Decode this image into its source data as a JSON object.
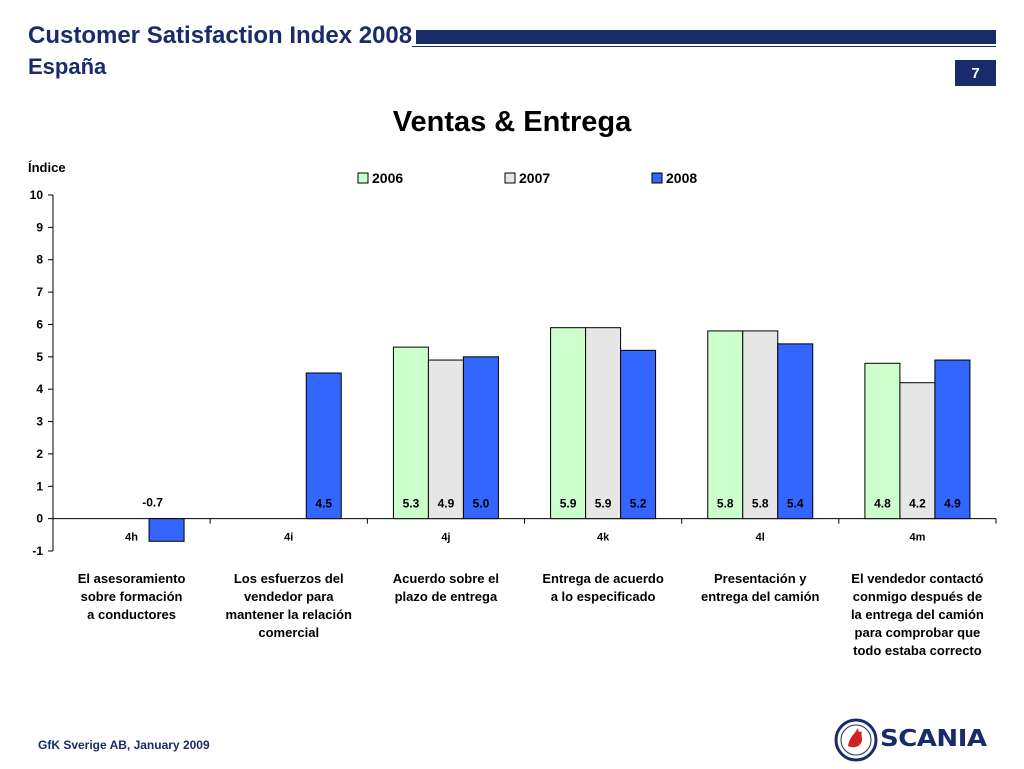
{
  "header": {
    "title": "Customer Satisfaction Index 2008",
    "subtitle": "España",
    "page_number": "7",
    "brand_color": "#1a2b6b"
  },
  "footer": {
    "note": "GfK Sverige AB, January 2009",
    "logo_text": "SCANIA"
  },
  "chart_data": {
    "type": "bar",
    "title": "Ventas & Entrega",
    "ylabel": "Índice",
    "xlabel": "",
    "ylim": [
      -1,
      10
    ],
    "yticks": [
      -1,
      0,
      1,
      2,
      3,
      4,
      5,
      6,
      7,
      8,
      9,
      10
    ],
    "grid": false,
    "legend_position": "top",
    "categories": [
      "4h",
      "4i",
      "4j",
      "4k",
      "4l",
      "4m"
    ],
    "category_descriptions": [
      "El asesoramiento\nsobre formación\na conductores",
      "Los esfuerzos del\nvendedor para\nmantener la relación\ncomercial",
      "Acuerdo sobre el\nplazo de entrega",
      "Entrega de acuerdo\na lo especificado",
      "Presentación y\nentrega del camión",
      "El vendedor contactó\nconmigo después de\nla entrega del camión\npara comprobar que\ntodo estaba correcto"
    ],
    "series": [
      {
        "name": "2006",
        "color": "#ccffcc",
        "values": [
          null,
          null,
          5.3,
          5.9,
          5.8,
          4.8
        ],
        "labels": [
          null,
          null,
          "5.3",
          "5.9",
          "5.8",
          "4.8"
        ]
      },
      {
        "name": "2007",
        "color": "#e6e6e6",
        "values": [
          null,
          null,
          4.9,
          5.9,
          5.8,
          4.2
        ],
        "labels": [
          null,
          null,
          "4.9",
          "5.9",
          "5.8",
          "4.2"
        ]
      },
      {
        "name": "2008",
        "color": "#3366ff",
        "values": [
          -0.7,
          4.5,
          5.0,
          5.2,
          5.4,
          4.9
        ],
        "labels": [
          "-0.7",
          "4.5",
          "5.0",
          "5.2",
          "5.4",
          "4.9"
        ]
      }
    ]
  }
}
